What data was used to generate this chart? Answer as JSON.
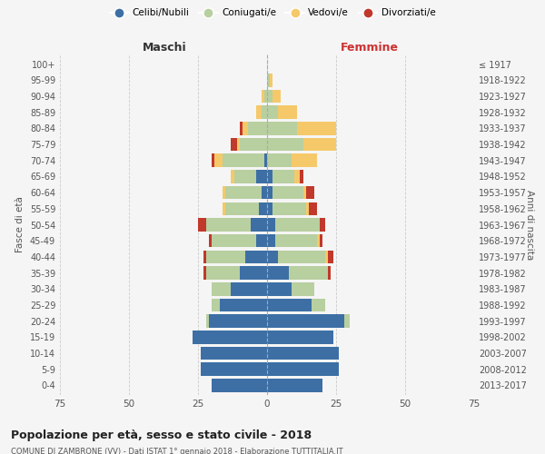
{
  "age_groups": [
    "0-4",
    "5-9",
    "10-14",
    "15-19",
    "20-24",
    "25-29",
    "30-34",
    "35-39",
    "40-44",
    "45-49",
    "50-54",
    "55-59",
    "60-64",
    "65-69",
    "70-74",
    "75-79",
    "80-84",
    "85-89",
    "90-94",
    "95-99",
    "100+"
  ],
  "birth_years": [
    "2013-2017",
    "2008-2012",
    "2003-2007",
    "1998-2002",
    "1993-1997",
    "1988-1992",
    "1983-1987",
    "1978-1982",
    "1973-1977",
    "1968-1972",
    "1963-1967",
    "1958-1962",
    "1953-1957",
    "1948-1952",
    "1943-1947",
    "1938-1942",
    "1933-1937",
    "1928-1932",
    "1923-1927",
    "1918-1922",
    "≤ 1917"
  ],
  "males": {
    "celibi": [
      20,
      24,
      24,
      27,
      21,
      17,
      13,
      10,
      8,
      4,
      6,
      3,
      2,
      4,
      1,
      0,
      0,
      0,
      0,
      0,
      0
    ],
    "coniugati": [
      0,
      0,
      0,
      0,
      1,
      3,
      7,
      12,
      14,
      16,
      16,
      12,
      13,
      8,
      15,
      10,
      7,
      2,
      1,
      0,
      0
    ],
    "vedovi": [
      0,
      0,
      0,
      0,
      0,
      0,
      0,
      0,
      0,
      0,
      0,
      1,
      1,
      1,
      3,
      1,
      2,
      2,
      1,
      0,
      0
    ],
    "divorziati": [
      0,
      0,
      0,
      0,
      0,
      0,
      0,
      1,
      1,
      1,
      3,
      0,
      0,
      0,
      1,
      2,
      1,
      0,
      0,
      0,
      0
    ]
  },
  "females": {
    "nubili": [
      20,
      26,
      26,
      24,
      28,
      16,
      9,
      8,
      4,
      3,
      3,
      2,
      2,
      2,
      0,
      0,
      0,
      0,
      0,
      0,
      0
    ],
    "coniugate": [
      0,
      0,
      0,
      0,
      2,
      5,
      8,
      14,
      17,
      15,
      16,
      12,
      11,
      8,
      9,
      13,
      11,
      4,
      2,
      1,
      0
    ],
    "vedove": [
      0,
      0,
      0,
      0,
      0,
      0,
      0,
      0,
      1,
      1,
      0,
      1,
      1,
      2,
      9,
      12,
      14,
      7,
      3,
      1,
      0
    ],
    "divorziate": [
      0,
      0,
      0,
      0,
      0,
      0,
      0,
      1,
      2,
      1,
      2,
      3,
      3,
      1,
      0,
      0,
      0,
      0,
      0,
      0,
      0
    ]
  },
  "colors": {
    "celibi": "#3d6fa5",
    "coniugati": "#b8cfa0",
    "vedovi": "#f5c96a",
    "divorziati": "#c0392b"
  },
  "xlim": 75,
  "title": "Popolazione per età, sesso e stato civile - 2018",
  "subtitle": "COMUNE DI ZAMBRONE (VV) - Dati ISTAT 1° gennaio 2018 - Elaborazione TUTTITALIA.IT",
  "label_maschi": "Maschi",
  "label_femmine": "Femmine",
  "ylabel_left": "Fasce di età",
  "ylabel_right": "Anni di nascita",
  "bg_color": "#f5f5f5",
  "grid_color": "#cccccc",
  "legend_labels": [
    "Celibi/Nubili",
    "Coniugati/e",
    "Vedovi/e",
    "Divorziati/e"
  ]
}
